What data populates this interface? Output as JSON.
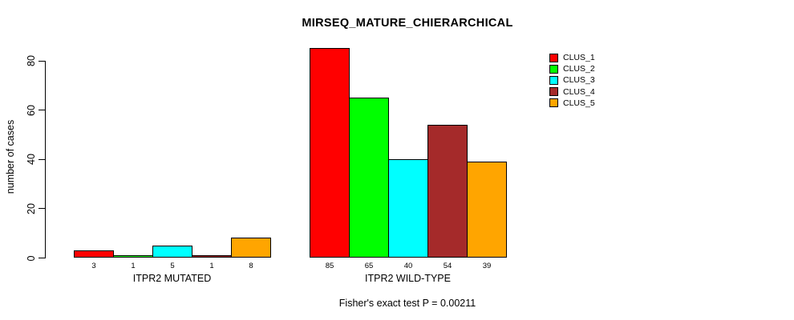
{
  "chart_data": {
    "type": "bar",
    "title": "MIRSEQ_MATURE_CHIERARCHICAL",
    "ylabel": "number of cases",
    "xlabel": "",
    "yticks": [
      0,
      20,
      40,
      60,
      80
    ],
    "ylim": [
      0,
      85
    ],
    "grid": false,
    "legend_position": "top-right",
    "series_names": [
      "CLUS_1",
      "CLUS_2",
      "CLUS_3",
      "CLUS_4",
      "CLUS_5"
    ],
    "series_colors": [
      "#FF0000",
      "#00FF00",
      "#00FFFF",
      "#A52A2A",
      "#FFA500"
    ],
    "groups": [
      {
        "label": "ITPR2 MUTATED",
        "values": [
          3,
          1,
          5,
          1,
          8
        ]
      },
      {
        "label": "ITPR2 WILD-TYPE",
        "values": [
          85,
          65,
          40,
          54,
          39
        ]
      }
    ],
    "footer": "Fisher's exact test P = 0.00211"
  }
}
